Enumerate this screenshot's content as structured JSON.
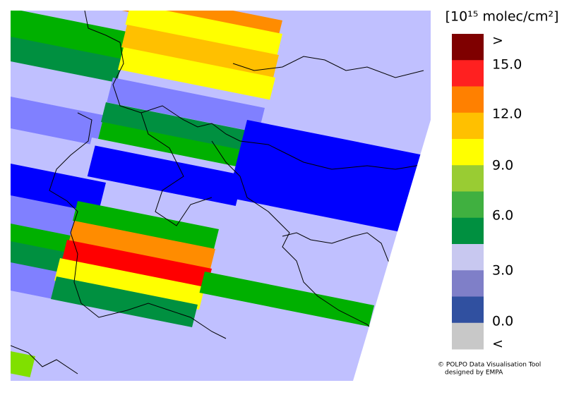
{
  "legend": {
    "title": "[10¹⁵ molec/cm²]",
    "labels": [
      ">",
      "15.0",
      "12.0",
      "9.0",
      "6.0",
      "3.0",
      "0.0",
      "<"
    ],
    "colors": [
      "#7f0000",
      "#ff2020",
      "#ff8000",
      "#ffc000",
      "#ffff00",
      "#99cc33",
      "#40b040",
      "#009040",
      "#c8c8f0",
      "#7f7fc8",
      "#3050a0",
      "#c8c8c8"
    ]
  },
  "footer": {
    "line1": "© POLPO Data Visualisation Tool",
    "line2": "designed by EMPA"
  }
}
